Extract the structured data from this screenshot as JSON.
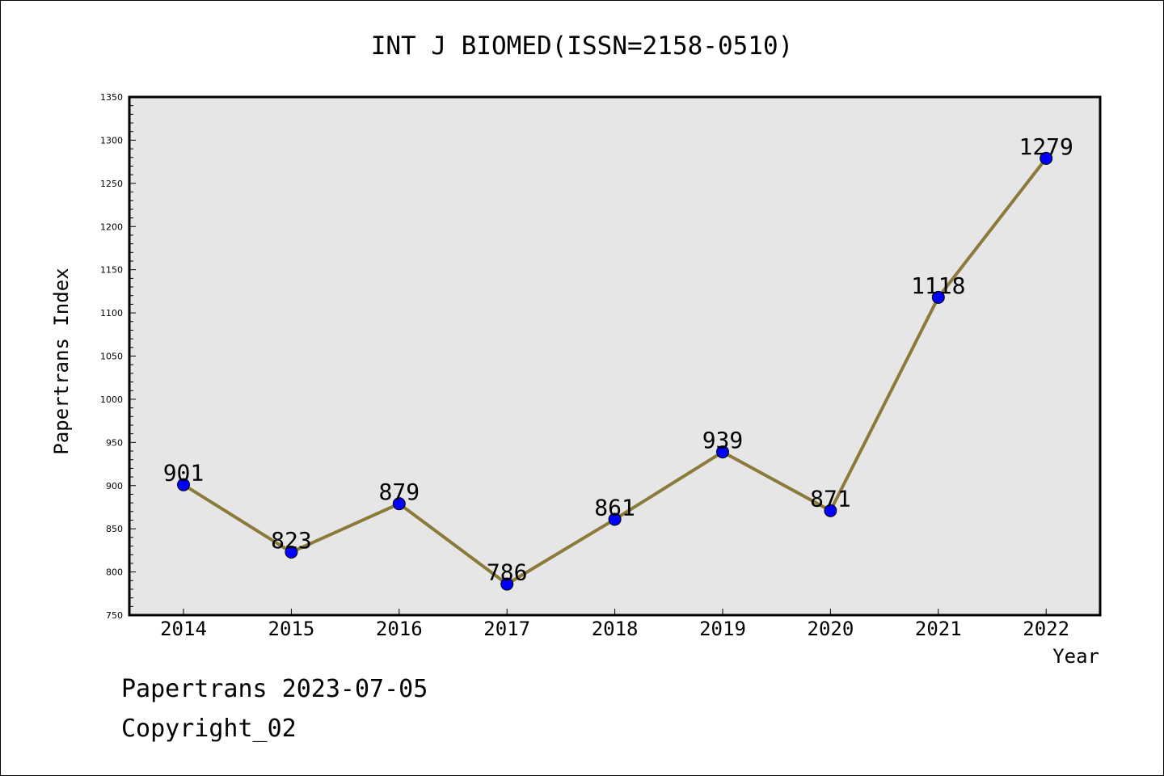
{
  "footer": {
    "line1": "Papertrans 2023-07-05",
    "line2": "Copyright_02"
  },
  "chart_data": {
    "type": "line",
    "title": "INT J BIOMED(ISSN=2158-0510)",
    "xlabel": "Year",
    "ylabel": "Papertrans Index",
    "categories": [
      "2014",
      "2015",
      "2016",
      "2017",
      "2018",
      "2019",
      "2020",
      "2021",
      "2022"
    ],
    "values": [
      901,
      823,
      879,
      786,
      861,
      939,
      871,
      1118,
      1279
    ],
    "data_labels": [
      "901",
      "823",
      "879",
      "786",
      "861",
      "939",
      "871",
      "1118",
      "1279"
    ],
    "ylim": [
      750,
      1350
    ],
    "yticks": [
      "750",
      "800",
      "850",
      "900",
      "950",
      "1000",
      "1050",
      "1100",
      "1150",
      "1200",
      "1250",
      "1300",
      "1350"
    ],
    "grid": false,
    "legend": "none",
    "colors": {
      "line": "#8c7a3a",
      "marker": "#0000ff",
      "plot_background": "#e6e6e6"
    }
  }
}
